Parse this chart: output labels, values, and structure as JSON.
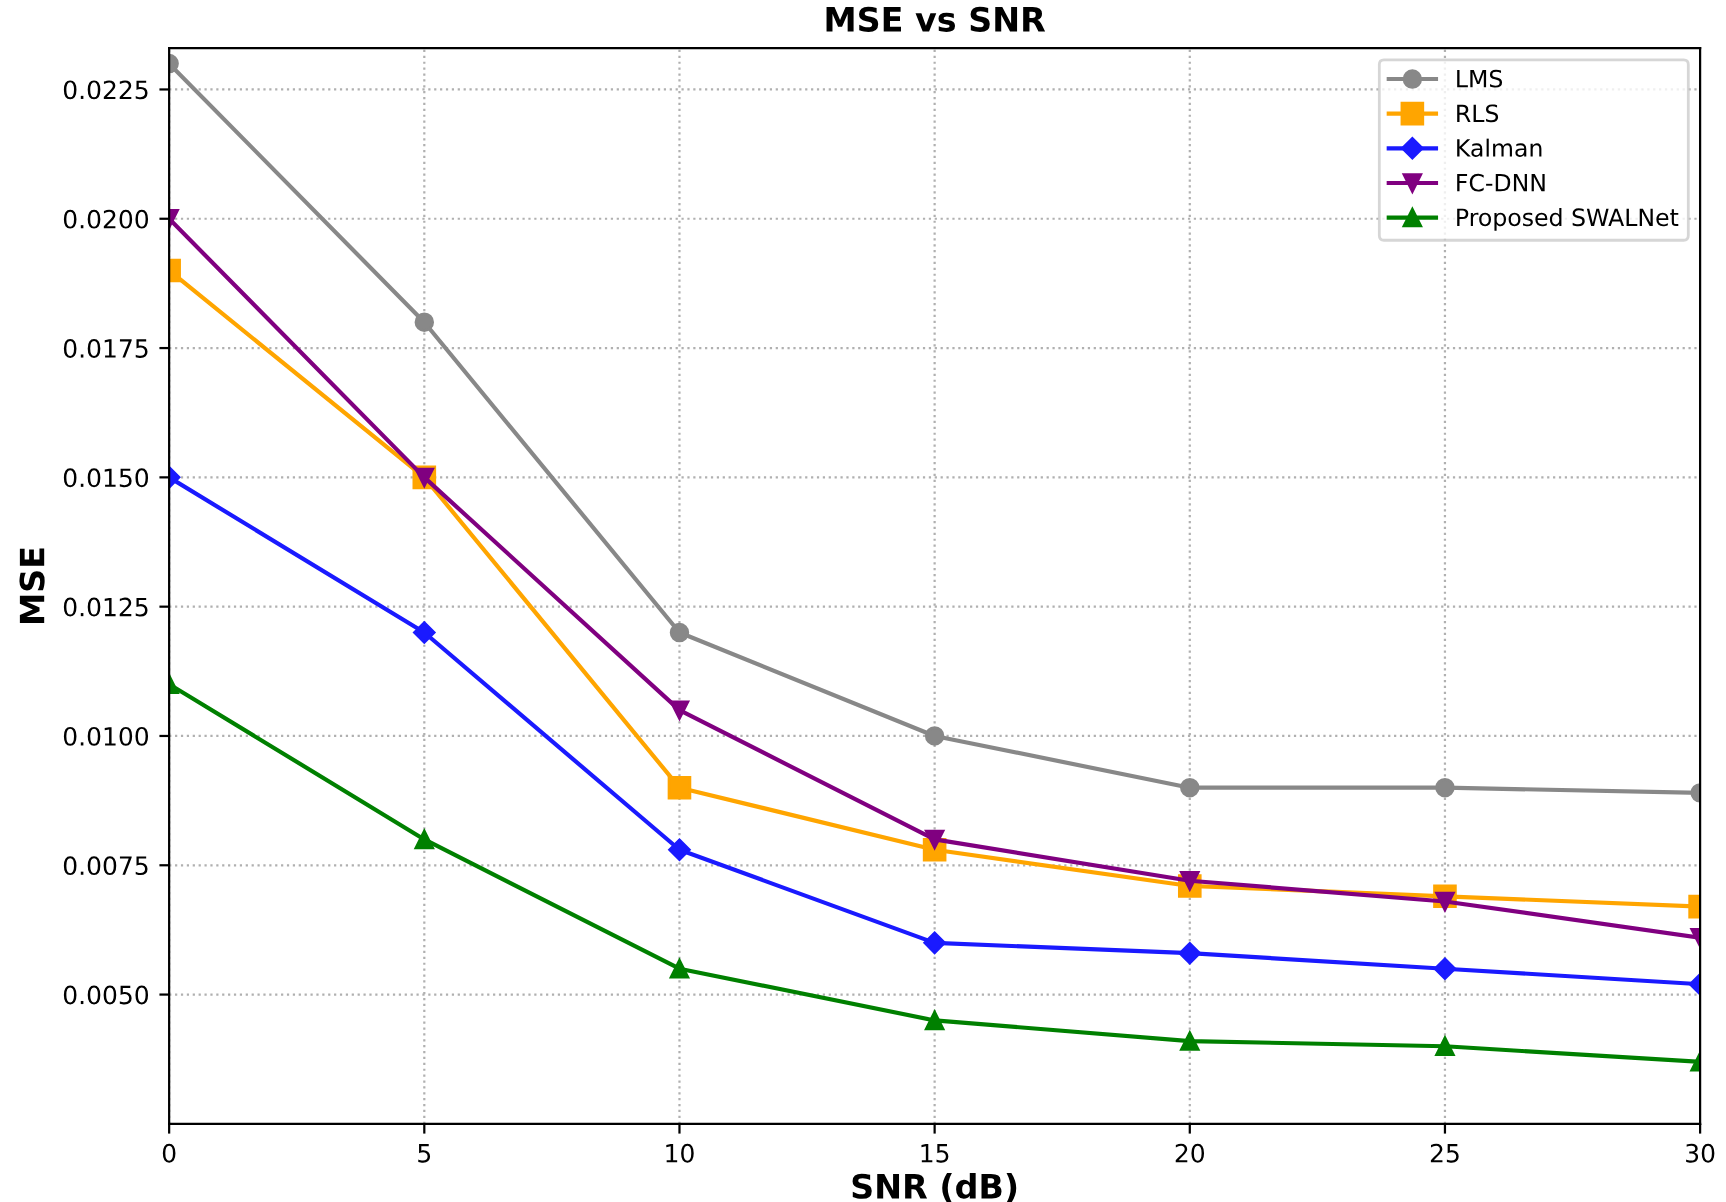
{
  "chart_data": {
    "type": "line",
    "title": "MSE vs SNR",
    "xlabel": "SNR (dB)",
    "ylabel": "MSE",
    "x": [
      0,
      5,
      10,
      15,
      20,
      25,
      30
    ],
    "series": [
      {
        "name": "LMS",
        "color": "#888888",
        "marker": "circle",
        "values": [
          0.023,
          0.018,
          0.012,
          0.01,
          0.009,
          0.009,
          0.0089
        ]
      },
      {
        "name": "RLS",
        "color": "#ffa500",
        "marker": "square",
        "values": [
          0.019,
          0.015,
          0.009,
          0.0078,
          0.0071,
          0.0069,
          0.0067
        ]
      },
      {
        "name": "Kalman",
        "color": "#1a1aff",
        "marker": "diamond",
        "values": [
          0.015,
          0.012,
          0.0078,
          0.006,
          0.0058,
          0.0055,
          0.0052
        ]
      },
      {
        "name": "FC-DNN",
        "color": "#800080",
        "marker": "triangle_down",
        "values": [
          0.02,
          0.015,
          0.0105,
          0.008,
          0.0072,
          0.0068,
          0.0061
        ]
      },
      {
        "name": "Proposed SWALNet",
        "color": "#008000",
        "marker": "triangle",
        "values": [
          0.011,
          0.008,
          0.0055,
          0.0045,
          0.0041,
          0.004,
          0.0037
        ]
      }
    ],
    "xlim": [
      0,
      30
    ],
    "xticks": [
      0,
      5,
      10,
      15,
      20,
      25,
      30
    ],
    "ylim": [
      0.0025,
      0.0233
    ],
    "yticks": [
      {
        "value": 0.005,
        "label": "0.0050"
      },
      {
        "value": 0.0075,
        "label": "0.0075"
      },
      {
        "value": 0.01,
        "label": "0.0100"
      },
      {
        "value": 0.0125,
        "label": "0.0125"
      },
      {
        "value": 0.015,
        "label": "0.0150"
      },
      {
        "value": 0.0175,
        "label": "0.0175"
      },
      {
        "value": 0.02,
        "label": "0.0200"
      },
      {
        "value": 0.0225,
        "label": "0.0225"
      }
    ],
    "grid": true,
    "legend": "top right",
    "line_style": "solid"
  }
}
